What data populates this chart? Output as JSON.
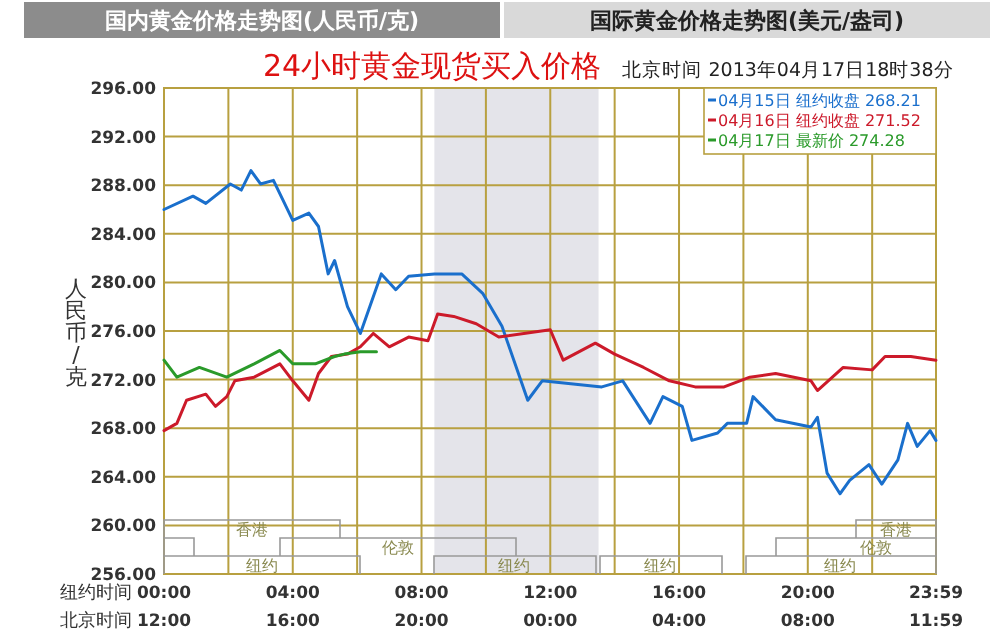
{
  "chart_data": {
    "type": "line",
    "title": "24小时黄金现货买入价格",
    "subtitle": "北京时间 2013年04月17日18时38分",
    "ylabel": "人民币/克",
    "xlabel": "纽约时间",
    "x2label": "北京时间",
    "annotations": [
      "国内黄金价格走势图(人民币/克)",
      "国际黄金价格走势图(美元/盎司)",
      "香港",
      "香港",
      "伦敦",
      "伦敦",
      "纽约",
      "纽约",
      "纽约",
      "纽约"
    ],
    "xlim": [
      0,
      23.983
    ],
    "x2lim": [
      "2013-04-17T12:00",
      "2013-04-18T11:59"
    ],
    "xticks": [
      {
        "value": 0,
        "label": "00:00"
      },
      {
        "value": 2,
        "label": null
      },
      {
        "value": 4,
        "label": "04:00"
      },
      {
        "value": 6,
        "label": null
      },
      {
        "value": 8,
        "label": "08:00"
      },
      {
        "value": 10,
        "label": null
      },
      {
        "value": 12,
        "label": "12:00"
      },
      {
        "value": 14,
        "label": null
      },
      {
        "value": 16,
        "label": "16:00"
      },
      {
        "value": 18,
        "label": null
      },
      {
        "value": 20,
        "label": "20:00"
      },
      {
        "value": 22,
        "label": null
      },
      {
        "value": 23.983,
        "label": "23:59"
      }
    ],
    "x2ticks": [
      {
        "value": "2013-04-17T12:00",
        "label": "12:00"
      },
      {
        "value": "2013-04-17T16:00",
        "label": "16:00"
      },
      {
        "value": "2013-04-17T20:00",
        "label": "20:00"
      },
      {
        "value": "2013-04-18T00:00",
        "label": "00:00"
      },
      {
        "value": "2013-04-18T04:00",
        "label": "04:00"
      },
      {
        "value": "2013-04-18T08:00",
        "label": "08:00"
      },
      {
        "value": "2013-04-18T11:59",
        "label": "11:59"
      }
    ],
    "ylim": [
      256,
      296
    ],
    "yticks": [
      {
        "value": 256,
        "label": "256.00"
      },
      {
        "value": 260,
        "label": "260.00"
      },
      {
        "value": 264,
        "label": "264.00"
      },
      {
        "value": 268,
        "label": "268.00"
      },
      {
        "value": 272,
        "label": "272.00"
      },
      {
        "value": 276,
        "label": "276.00"
      },
      {
        "value": 280,
        "label": "280.00"
      },
      {
        "value": 284,
        "label": "284.00"
      },
      {
        "value": 288,
        "label": "288.00"
      },
      {
        "value": 292,
        "label": "292.00"
      },
      {
        "value": 296,
        "label": "296.00"
      }
    ],
    "grid": true,
    "legend": "top right",
    "series": [
      {
        "name": "04月15日 纽约收盘 268.21",
        "color": "#1a6fcc",
        "x": [
          0,
          0.9,
          1.3,
          2.06,
          2.4,
          2.7,
          3.0,
          3.4,
          4.0,
          4.5,
          4.8,
          5.1,
          5.3,
          5.7,
          6.1,
          6.75,
          7.2,
          7.6,
          8.4,
          9.25,
          9.9,
          10.5,
          11.3,
          11.75,
          13.6,
          14.25,
          15.1,
          15.5,
          16.1,
          16.4,
          17.2,
          17.5,
          18.1,
          18.3,
          19.0,
          20.1,
          20.3,
          20.6,
          21.0,
          21.3,
          21.9,
          22.3,
          22.8,
          23.1,
          23.4,
          23.8,
          23.98
        ],
        "values": [
          286.0,
          287.1,
          286.5,
          288.1,
          287.6,
          289.2,
          288.1,
          288.4,
          285.1,
          285.7,
          284.6,
          280.7,
          281.8,
          278.0,
          275.8,
          280.7,
          279.4,
          280.5,
          280.7,
          280.7,
          279.1,
          276.4,
          270.3,
          271.9,
          271.4,
          271.9,
          268.4,
          270.6,
          269.8,
          267.0,
          267.6,
          268.4,
          268.4,
          270.6,
          268.7,
          268.1,
          268.9,
          264.3,
          262.6,
          263.7,
          265.0,
          263.4,
          265.4,
          268.4,
          266.5,
          267.8,
          267.0
        ]
      },
      {
        "name": "04月16日 纽约收盘 271.52",
        "color": "#cc1a2a",
        "x": [
          0,
          0.4,
          0.7,
          1.3,
          1.6,
          1.95,
          2.2,
          2.8,
          3.6,
          4.0,
          4.5,
          4.8,
          5.2,
          5.7,
          6.1,
          6.5,
          7.0,
          7.6,
          8.2,
          8.5,
          9.0,
          9.7,
          10.4,
          12.0,
          12.4,
          13.4,
          14.0,
          14.9,
          15.7,
          16.5,
          17.4,
          18.2,
          19.0,
          20.1,
          20.3,
          21.1,
          22.0,
          22.4,
          23.2,
          23.98
        ],
        "values": [
          267.8,
          268.4,
          270.3,
          270.8,
          269.8,
          270.6,
          271.9,
          272.2,
          273.3,
          271.9,
          270.3,
          272.5,
          273.9,
          274.1,
          274.7,
          275.8,
          274.7,
          275.5,
          275.2,
          277.4,
          277.2,
          276.6,
          275.5,
          276.1,
          273.6,
          275.0,
          274.1,
          273.0,
          271.9,
          271.4,
          271.4,
          272.2,
          272.5,
          271.9,
          271.1,
          273.0,
          272.8,
          273.9,
          273.9,
          273.6
        ]
      },
      {
        "name": "04月17日 最新价 274.28",
        "color": "#2a9a2a",
        "x": [
          0,
          0.4,
          1.1,
          1.95,
          2.8,
          3.6,
          4.0,
          4.7,
          5.3,
          5.6,
          6.1,
          6.6
        ],
        "values": [
          273.6,
          272.2,
          273.0,
          272.2,
          273.3,
          274.4,
          273.3,
          273.3,
          273.9,
          274.1,
          274.3,
          274.3
        ]
      }
    ],
    "bands": [
      {
        "axis": "x",
        "from": 8.4,
        "to": 13.5,
        "color": "#e4e4ea"
      }
    ]
  }
}
